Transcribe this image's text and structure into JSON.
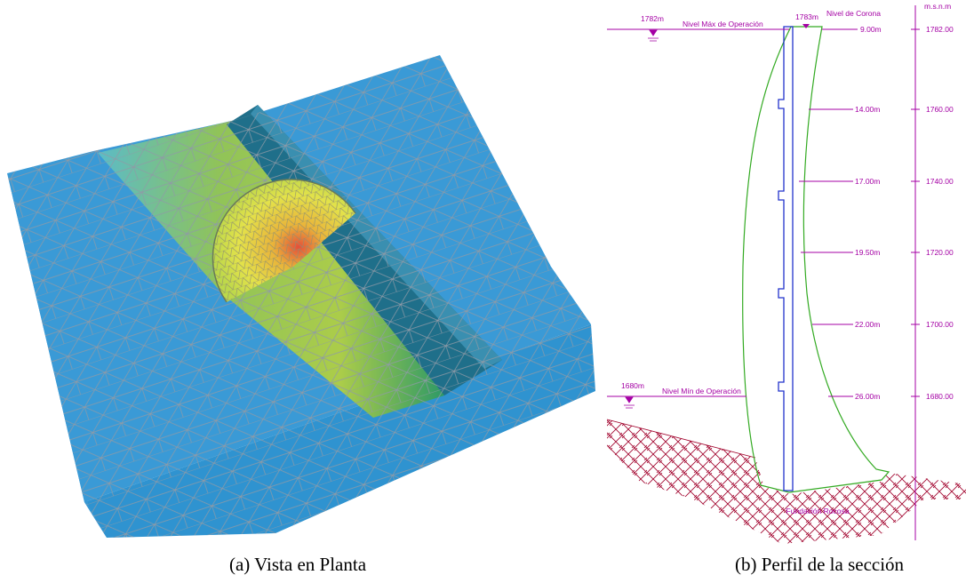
{
  "figure": {
    "panel_a": {
      "caption": "(a) Vista en Planta"
    },
    "panel_b": {
      "caption": "(b) Perfil de la sección",
      "elevation_axis": {
        "title": "m.s.n.m",
        "ticks": [
          "1782.00",
          "1760.00",
          "1740.00",
          "1720.00",
          "1700.00",
          "1680.00"
        ]
      },
      "max_level": {
        "elevation": "1782m",
        "label": "Nivel Máx de Operación"
      },
      "crest": {
        "elevation": "1783m",
        "label": "Nivel de Corona"
      },
      "min_level": {
        "elevation": "1680m",
        "label": "Nivel Mín de Operación"
      },
      "thicknesses": [
        "9.00m",
        "14.00m",
        "17.00m",
        "19.50m",
        "22.00m",
        "26.00m"
      ],
      "foundation": "Fundación Rocosa"
    }
  }
}
